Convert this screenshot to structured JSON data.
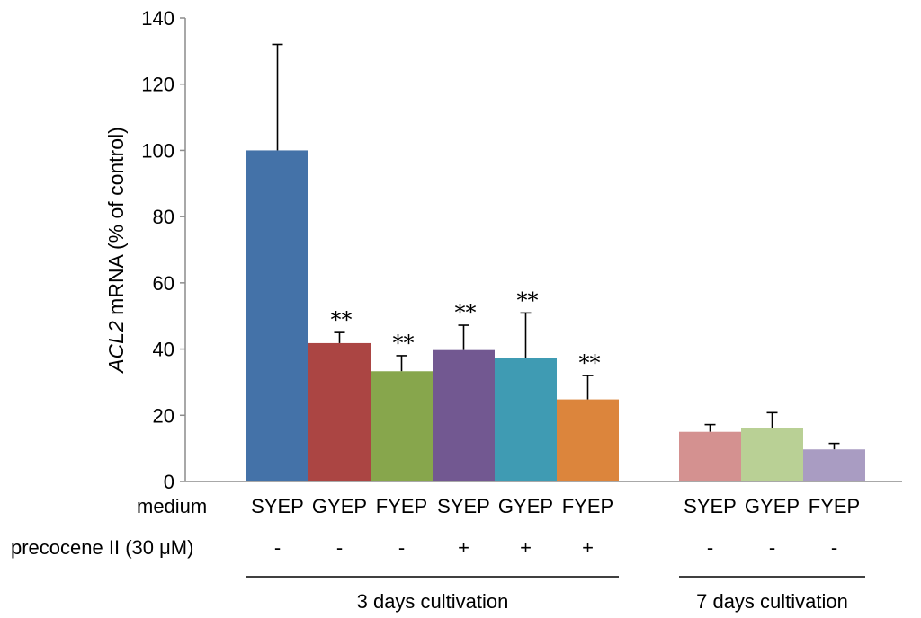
{
  "chart_data": {
    "type": "bar",
    "ylabel_gene": "ACL2",
    "ylabel_rest": " mRNA (% of control)",
    "ylim": [
      0,
      140
    ],
    "yticks": [
      0,
      20,
      40,
      60,
      80,
      100,
      120,
      140
    ],
    "grid": false,
    "row_labels": {
      "medium": "medium",
      "precocene": "precocene II (30 μM)"
    },
    "groups": [
      {
        "label": "3 days cultivation",
        "bars": [
          0,
          1,
          2,
          3,
          4,
          5
        ]
      },
      {
        "label": "7 days cultivation",
        "bars": [
          6,
          7,
          8
        ]
      }
    ],
    "bars": [
      {
        "medium": "SYEP",
        "precocene": "-",
        "value": 100,
        "error": 32,
        "sig": "",
        "color": "#4472a8"
      },
      {
        "medium": "GYEP",
        "precocene": "-",
        "value": 41.8,
        "error": 3.2,
        "sig": "**",
        "color": "#ab4543"
      },
      {
        "medium": "FYEP",
        "precocene": "-",
        "value": 33.3,
        "error": 4.7,
        "sig": "**",
        "color": "#87a64c"
      },
      {
        "medium": "SYEP",
        "precocene": "+",
        "value": 39.7,
        "error": 7.5,
        "sig": "**",
        "color": "#725891"
      },
      {
        "medium": "GYEP",
        "precocene": "+",
        "value": 37.3,
        "error": 13.6,
        "sig": "**",
        "color": "#3f9bb3"
      },
      {
        "medium": "FYEP",
        "precocene": "+",
        "value": 24.8,
        "error": 7.2,
        "sig": "**",
        "color": "#dc853c"
      },
      {
        "medium": "SYEP",
        "precocene": "-",
        "value": 15,
        "error": 2.2,
        "sig": "",
        "color": "#d49190"
      },
      {
        "medium": "GYEP",
        "precocene": "-",
        "value": 16.2,
        "error": 4.6,
        "sig": "",
        "color": "#b9d095"
      },
      {
        "medium": "FYEP",
        "precocene": "-",
        "value": 9.7,
        "error": 1.8,
        "sig": "",
        "color": "#a99cc2"
      }
    ]
  }
}
